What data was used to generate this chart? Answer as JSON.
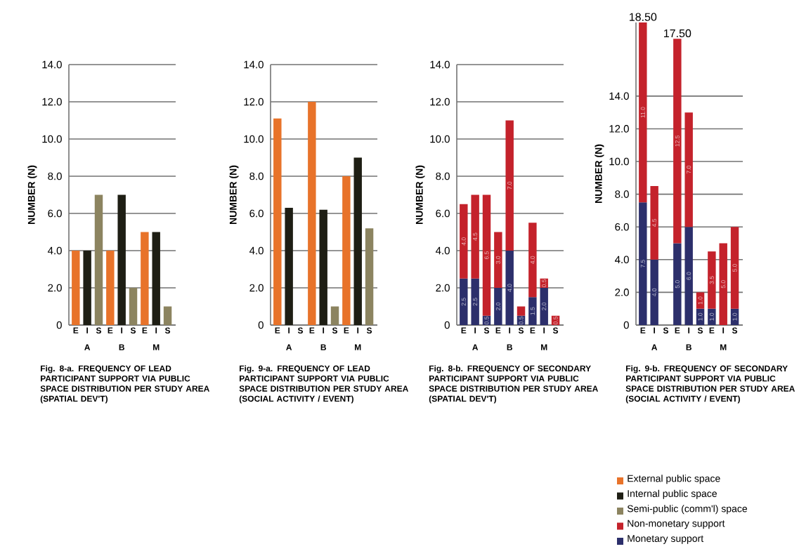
{
  "chart_data": [
    {
      "type": "bar",
      "stacked": true,
      "title": "Fig. 8-a. FREQUENCY OF  LEAD PARTICIPANT SUPPORT VIA PUBLIC SPACE DISTRIBUTION PER STUDY AREA (SPATIAL DEV'T)",
      "ylabel": "NUMBER (N)",
      "categories": [
        "E",
        "I",
        "S",
        "E",
        "I",
        "S",
        "E",
        "I",
        "S"
      ],
      "annotations": [
        "A",
        "B",
        "M"
      ],
      "series": [
        {
          "name": "External public space",
          "color": "#e8732a",
          "values": [
            4,
            null,
            null,
            4,
            null,
            null,
            5,
            null,
            null
          ]
        },
        {
          "name": "Internal  public space",
          "color": "#1e1e14",
          "values": [
            null,
            4,
            null,
            null,
            7,
            null,
            null,
            5,
            null
          ]
        },
        {
          "name": "Semi-public (comm'l) space",
          "color": "#8c8460",
          "values": [
            null,
            null,
            7,
            null,
            null,
            2,
            null,
            null,
            1
          ]
        }
      ],
      "ylim": [
        0,
        14
      ],
      "yticks": [
        0,
        {
          "value": 2,
          "label": "2.0"
        },
        {
          "value": 4,
          "label": "4.0"
        },
        {
          "value": 6,
          "label": "6.0"
        },
        {
          "value": 8,
          "label": "8.0"
        },
        {
          "value": 10,
          "label": "10.0"
        },
        {
          "value": 12,
          "label": "12.0"
        },
        {
          "value": 14,
          "label": "14.0"
        }
      ],
      "grid": "y",
      "legend": "bottom right"
    },
    {
      "type": "bar",
      "stacked": true,
      "title": "Fig. 9-a. FREQUENCY OF  LEAD PARTICIPANT SUPPORT VIA PUBLIC SPACE DISTRIBUTION PER STUDY AREA (SOCIAL ACTIVITY / EVENT)",
      "ylabel": "NUMBER (N)",
      "categories": [
        "E",
        "I",
        "S",
        "E",
        "I",
        "S",
        "E",
        "I",
        "S"
      ],
      "annotations": [
        "A",
        "B",
        "M"
      ],
      "series": [
        {
          "color": "#e8732a",
          "values": [
            11.1,
            null,
            null,
            12,
            null,
            null,
            8,
            null,
            null
          ]
        },
        {
          "color": "#1e1e14",
          "values": [
            null,
            6.3,
            null,
            null,
            6.2,
            null,
            null,
            9,
            null
          ]
        },
        {
          "color": "#8c8460",
          "values": [
            null,
            null,
            null,
            null,
            null,
            1,
            null,
            null,
            5.2
          ]
        }
      ],
      "ylim": [
        0,
        14
      ],
      "yticks": [
        0,
        {
          "value": 2,
          "label": "2.0"
        },
        {
          "value": 4,
          "label": "4.0"
        },
        {
          "value": 6,
          "label": "6.0"
        },
        {
          "value": 8,
          "label": "8.0"
        },
        {
          "value": 10,
          "label": "10.0"
        },
        {
          "value": 12,
          "label": "12.0"
        },
        {
          "value": 14,
          "label": "14.0"
        }
      ],
      "grid": "y"
    },
    {
      "type": "bar",
      "stacked": true,
      "title": "Fig. 8-b. FREQUENCY OF SECONDARY PARTICIPANT SUPPORT VIA PUBLIC SPACE DISTRIBUTION PER STUDY AREA (SPATIAL DEV'T)",
      "ylabel": "NUMBER (N)",
      "categories": [
        "E",
        "I",
        "S",
        "E",
        "I",
        "S",
        "E",
        "I",
        "S"
      ],
      "annotations": [
        "A",
        "B",
        "M"
      ],
      "series": [
        {
          "name": "Monetary support",
          "color": "#2c2f6b",
          "values": [
            2.5,
            2.5,
            0.5,
            2.0,
            4.0,
            0.5,
            1.5,
            2.0,
            null
          ],
          "value_labels": [
            "2.5",
            "2.5",
            "0.5",
            "2.0",
            "4.0",
            "0.5",
            "1.5",
            "2.0",
            null
          ]
        },
        {
          "name": "Non-monetary support",
          "color": "#c4222b",
          "values": [
            4.0,
            4.5,
            6.5,
            3.0,
            7.0,
            0.5,
            4.0,
            0.5,
            0.5
          ],
          "value_labels": [
            "4.0",
            "4.5",
            "6.5",
            "3.0",
            "7.0",
            null,
            "4.0",
            "0.5",
            "0.5"
          ]
        }
      ],
      "ylim": [
        0,
        14
      ],
      "yticks": [
        0,
        {
          "value": 2,
          "label": "2.0"
        },
        {
          "value": 4,
          "label": "4.0"
        },
        {
          "value": 6,
          "label": "6.0"
        },
        {
          "value": 8,
          "label": "8.0"
        },
        {
          "value": 10,
          "label": "10.0"
        },
        {
          "value": 12,
          "label": "12.0"
        },
        {
          "value": 14,
          "label": "14.0"
        }
      ],
      "grid": "y",
      "legend": "bottom right"
    },
    {
      "type": "bar",
      "stacked": true,
      "title": "Fig. 9-b. FREQUENCY OF SECONDARY PARTICIPANT SUPPORT VIA PUBLIC SPACE DISTRIBUTION PER STUDY AREA (SOCIAL ACTIVITY / EVENT)",
      "ylabel": "NUMBER (N)",
      "categories": [
        "E",
        "I",
        "S",
        "E",
        "I",
        "S",
        "E",
        "I",
        "S"
      ],
      "annotations": [
        "A",
        "B",
        "M"
      ],
      "series": [
        {
          "color": "#2c2f6b",
          "values": [
            7.5,
            4.0,
            null,
            5.0,
            6.0,
            1.0,
            1.0,
            null,
            1.0
          ],
          "value_labels": [
            "7.5",
            "4.0",
            null,
            "5.0",
            "6.0",
            "1.0",
            "1.0",
            null,
            "1.0"
          ]
        },
        {
          "color": "#c4222b",
          "values": [
            11.0,
            4.5,
            null,
            12.5,
            7.0,
            1.0,
            3.5,
            5.0,
            5.0
          ],
          "value_labels": [
            "11.0",
            "4.5",
            null,
            "12.5",
            "7.0",
            "1.0",
            "3.5",
            "5.0",
            "5.0"
          ]
        }
      ],
      "totals": [
        "18.50",
        null,
        null,
        "17.50",
        null,
        null,
        null,
        null,
        null
      ],
      "ylim": [
        0,
        18.5
      ],
      "yticks": [
        0,
        {
          "value": 2,
          "label": "2.0"
        },
        {
          "value": 4,
          "label": "4.0"
        },
        {
          "value": 6,
          "label": "6.0"
        },
        {
          "value": 8,
          "label": "8.0"
        },
        {
          "value": 10,
          "label": "10.0"
        },
        {
          "value": 12,
          "label": "12.0"
        },
        {
          "value": 14,
          "label": "14.0"
        }
      ],
      "grid": "y"
    }
  ]
}
